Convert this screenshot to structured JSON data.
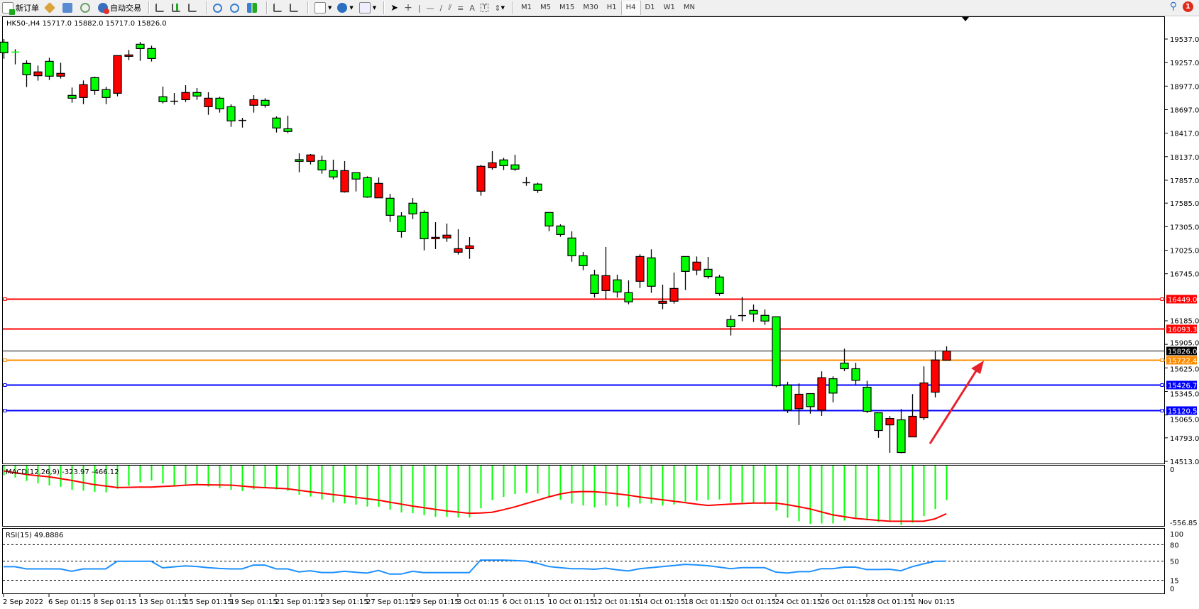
{
  "toolbar": {
    "new_order": "新订单",
    "auto_trading": "自动交易",
    "icons": [
      "new-order-icon",
      "meta-editor-icon",
      "data-window-icon",
      "signals-icon",
      "auto-trading-icon",
      "bar-chart-icon",
      "candlestick-icon",
      "line-chart-icon",
      "zoom-in-icon",
      "zoom-out-icon",
      "tile-windows-icon",
      "chart-shift-icon",
      "auto-scroll-icon",
      "indicators-icon",
      "periods-icon",
      "templates-icon",
      "cursor-icon",
      "crosshair-icon",
      "vertical-line-icon",
      "horizontal-line-icon",
      "trendline-icon",
      "equidistant-channel-icon",
      "fibonacci-icon",
      "text-icon",
      "text-label-icon",
      "arrows-icon"
    ],
    "text_tool": "A",
    "timeframes": [
      "M1",
      "M5",
      "M15",
      "M30",
      "H1",
      "H4",
      "D1",
      "W1",
      "MN"
    ],
    "active_timeframe": "H4",
    "notifications": "1"
  },
  "chart": {
    "header": "HK50-,H4  15717.0 15882.0 15717.0 15826.0",
    "price_ticks": [
      19537.0,
      19257.0,
      18977.0,
      18697.0,
      18417.0,
      18137.0,
      17857.0,
      17585.0,
      17305.0,
      17025.0,
      16745.0,
      16185.0,
      15905.0,
      15625.0,
      15345.0,
      15065.0,
      14793.0,
      14513.0
    ],
    "levels": [
      {
        "price": 16449.0,
        "label": "16449.0",
        "color": "#ff0000",
        "handles": true
      },
      {
        "price": 16093.3,
        "label": "16093.3",
        "color": "#ff0000",
        "handles": false
      },
      {
        "price": 15826.0,
        "label": "15826.0",
        "color": "#000000",
        "handles": false
      },
      {
        "price": 15722.4,
        "label": "15722.4",
        "color": "#ff8c00",
        "handles": true
      },
      {
        "price": 15426.7,
        "label": "15426.7",
        "color": "#0000ff",
        "handles": true
      },
      {
        "price": 15120.5,
        "label": "15120.5",
        "color": "#0000ff",
        "handles": true
      }
    ],
    "bull_color": "#ff0000",
    "bear_color": "#00ff00",
    "annotation_arrow_color": "#e8202a",
    "candles": [
      [
        19500,
        19537,
        19303,
        19374
      ],
      [
        19382,
        19416,
        19236,
        19382
      ],
      [
        19247,
        19284,
        18966,
        19112
      ],
      [
        19101,
        19222,
        19042,
        19146
      ],
      [
        19272,
        19315,
        19050,
        19095
      ],
      [
        19095,
        19255,
        19067,
        19129
      ],
      [
        18867,
        18960,
        18780,
        18833
      ],
      [
        18842,
        19044,
        18763,
        18994
      ],
      [
        19078,
        19089,
        18873,
        18926
      ],
      [
        18935,
        18968,
        18763,
        18842
      ],
      [
        18892,
        19340,
        18856,
        19340
      ],
      [
        19331,
        19407,
        19286,
        19348
      ],
      [
        19475,
        19503,
        19278,
        19424
      ],
      [
        19424,
        19458,
        19270,
        19306
      ],
      [
        18850,
        18971,
        18771,
        18791
      ],
      [
        18797,
        18895,
        18755,
        18797
      ],
      [
        18816,
        18988,
        18788,
        18901
      ],
      [
        18901,
        18954,
        18814,
        18859
      ],
      [
        18732,
        18904,
        18636,
        18833
      ],
      [
        18833,
        18850,
        18662,
        18707
      ],
      [
        18732,
        18760,
        18493,
        18563
      ],
      [
        18569,
        18600,
        18484,
        18569
      ],
      [
        18749,
        18870,
        18662,
        18816
      ],
      [
        18808,
        18833,
        18721,
        18749
      ],
      [
        18597,
        18617,
        18425,
        18479
      ],
      [
        18470,
        18625,
        18417,
        18437
      ],
      [
        18102,
        18177,
        17952,
        18082
      ],
      [
        18082,
        18169,
        18045,
        18158
      ],
      [
        18090,
        18149,
        17935,
        17980
      ],
      [
        17972,
        18102,
        17868,
        17896
      ],
      [
        17719,
        18085,
        17710,
        17972
      ],
      [
        17947,
        17947,
        17724,
        17871
      ],
      [
        17888,
        17904,
        17648,
        17657
      ],
      [
        17648,
        17890,
        17648,
        17820
      ],
      [
        17643,
        17696,
        17361,
        17440
      ],
      [
        17432,
        17477,
        17175,
        17246
      ],
      [
        17584,
        17645,
        17395,
        17457
      ],
      [
        17474,
        17499,
        17023,
        17161
      ],
      [
        17161,
        17358,
        17038,
        17178
      ],
      [
        17170,
        17342,
        17125,
        17204
      ],
      [
        17001,
        17274,
        16973,
        17043
      ],
      [
        17043,
        17181,
        16922,
        17077
      ],
      [
        17727,
        18040,
        17674,
        18023
      ],
      [
        18006,
        18203,
        17983,
        18065
      ],
      [
        18099,
        18124,
        17978,
        18031
      ],
      [
        18040,
        18161,
        17969,
        17989
      ],
      [
        17828,
        17896,
        17792,
        17828
      ],
      [
        17812,
        17828,
        17707,
        17736
      ],
      [
        17474,
        17474,
        17251,
        17313
      ],
      [
        17313,
        17333,
        17184,
        17212
      ],
      [
        17170,
        17249,
        16888,
        16959
      ],
      [
        16959,
        17004,
        16787,
        16841
      ],
      [
        16731,
        16793,
        16461,
        16511
      ],
      [
        16545,
        17063,
        16441,
        16722
      ],
      [
        16672,
        16734,
        16461,
        16528
      ],
      [
        16520,
        16666,
        16382,
        16410
      ],
      [
        16655,
        16976,
        16576,
        16950
      ],
      [
        16934,
        17035,
        16517,
        16596
      ],
      [
        16393,
        16615,
        16323,
        16418
      ],
      [
        16418,
        16759,
        16390,
        16570
      ],
      [
        16950,
        16950,
        16551,
        16773
      ],
      [
        16787,
        16950,
        16728,
        16883
      ],
      [
        16798,
        16945,
        16686,
        16711
      ],
      [
        16706,
        16731,
        16483,
        16511
      ],
      [
        16199,
        16250,
        16010,
        16114
      ],
      [
        16247,
        16469,
        16179,
        16247
      ],
      [
        16309,
        16379,
        16171,
        16266
      ],
      [
        16250,
        16320,
        16137,
        16182
      ],
      [
        16233,
        16233,
        15395,
        15412
      ],
      [
        15420,
        15460,
        15088,
        15122
      ],
      [
        15139,
        15440,
        14945,
        15311
      ],
      [
        15319,
        15319,
        15080,
        15164
      ],
      [
        15122,
        15584,
        15054,
        15508
      ],
      [
        15496,
        15524,
        15215,
        15325
      ],
      [
        15682,
        15854,
        15586,
        15615
      ],
      [
        15615,
        15685,
        15429,
        15477
      ],
      [
        15395,
        15471,
        15088,
        15108
      ],
      [
        15091,
        15091,
        14793,
        14880
      ],
      [
        14947,
        15052,
        14615,
        15023
      ],
      [
        15007,
        15136,
        14610,
        14618
      ],
      [
        14804,
        15313,
        14804,
        15049
      ],
      [
        15032,
        15643,
        15004,
        15446
      ],
      [
        15336,
        15826,
        15274,
        15719
      ],
      [
        15717,
        15882,
        15717,
        15826
      ]
    ]
  },
  "macd": {
    "label": "MACD(12,26,9) -323.97 -466.12",
    "scale_top": "0",
    "scale_bottom": "-556.85",
    "hist_color": "#00ff00",
    "signal_color": "#ff0000",
    "histogram": [
      -63,
      -88,
      -123,
      -147,
      -170,
      -185,
      -215,
      -225,
      -237,
      -242,
      -205,
      -175,
      -137,
      -118,
      -150,
      -170,
      -162,
      -157,
      -182,
      -200,
      -215,
      -229,
      -212,
      -187,
      -212,
      -227,
      -267,
      -287,
      -317,
      -349,
      -359,
      -371,
      -391,
      -394,
      -424,
      -453,
      -461,
      -481,
      -498,
      -498,
      -506,
      -506,
      -409,
      -324,
      -290,
      -260,
      -250,
      -255,
      -290,
      -320,
      -360,
      -380,
      -400,
      -380,
      -390,
      -400,
      -360,
      -360,
      -380,
      -370,
      -340,
      -330,
      -320,
      -317,
      -349,
      -349,
      -349,
      -366,
      -433,
      -508,
      -545,
      -573,
      -568,
      -568,
      -538,
      -518,
      -535,
      -553,
      -540,
      -583,
      -560,
      -491,
      -416,
      -324
    ],
    "signal": [
      -18,
      -37,
      -55,
      -68,
      -80,
      -99,
      -118,
      -140,
      -162,
      -177,
      -192,
      -190,
      -188,
      -187,
      -181,
      -175,
      -168,
      -162,
      -164,
      -165,
      -167,
      -177,
      -187,
      -193,
      -199,
      -205,
      -221,
      -237,
      -251,
      -265,
      -279,
      -294,
      -309,
      -324,
      -345,
      -365,
      -386,
      -403,
      -420,
      -436,
      -449,
      -461,
      -458,
      -451,
      -425,
      -395,
      -360,
      -325,
      -290,
      -260,
      -240,
      -234,
      -236,
      -245,
      -258,
      -272,
      -290,
      -305,
      -320,
      -335,
      -350,
      -365,
      -379,
      -372,
      -366,
      -360,
      -354,
      -354,
      -354,
      -371,
      -393,
      -416,
      -447,
      -478,
      -497,
      -515,
      -525,
      -535,
      -545,
      -545,
      -545,
      -545,
      -520,
      -466
    ]
  },
  "rsi": {
    "label": "RSI(15) 49.8886",
    "line_color": "#1e90ff",
    "scale_labels": [
      "100",
      "80",
      "50",
      "15",
      "0"
    ],
    "levels": [
      80,
      50,
      15
    ],
    "values": [
      39.8,
      39.8,
      35.7,
      35.7,
      35.7,
      35.7,
      31.3,
      35.7,
      35.7,
      35.7,
      49.6,
      49.6,
      49.6,
      49.6,
      37.6,
      39.5,
      41.2,
      40.1,
      38,
      36.5,
      35.7,
      35.7,
      42.7,
      42.7,
      35.7,
      35.7,
      30.2,
      32.4,
      29.1,
      29.1,
      31.3,
      29.5,
      28,
      32.8,
      26.2,
      26.2,
      31.3,
      28.8,
      28.8,
      28.8,
      28.8,
      28.8,
      51.8,
      51.8,
      51.8,
      51,
      50,
      46,
      40,
      38,
      36,
      36,
      35,
      37,
      34,
      32,
      36,
      38,
      40,
      42,
      44,
      43,
      41.6,
      39,
      36.1,
      37.9,
      37.9,
      37.9,
      29.9,
      28,
      30.6,
      30.6,
      36.1,
      36.1,
      39,
      39,
      34.6,
      34.6,
      35,
      32.4,
      39.8,
      44.9,
      49.6,
      49.9
    ]
  },
  "time_axis": [
    "2 Sep 2022",
    "6 Sep 01:15",
    "8 Sep 01:15",
    "13 Sep 01:15",
    "15 Sep 01:15",
    "19 Sep 01:15",
    "21 Sep 01:15",
    "23 Sep 01:15",
    "27 Sep 01:15",
    "29 Sep 01:15",
    "3 Oct 01:15",
    "6 Oct 01:15",
    "10 Oct 01:15",
    "12 Oct 01:15",
    "14 Oct 01:15",
    "18 Oct 01:15",
    "20 Oct 01:15",
    "24 Oct 01:15",
    "26 Oct 01:15",
    "28 Oct 01:15",
    "1 Nov 01:15"
  ]
}
